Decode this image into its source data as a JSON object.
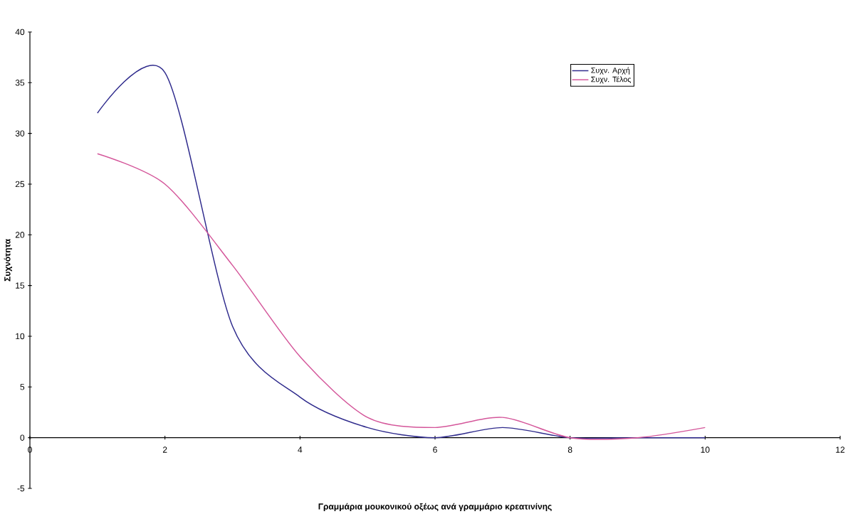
{
  "chart_data": {
    "type": "line",
    "xlabel": "Γραμμάρια μουκονικού οξέως ανά γραμμάριο κρεατινίνης",
    "ylabel": "Συχνότητα",
    "x": [
      1,
      2,
      3,
      4,
      5,
      6,
      7,
      8,
      9,
      10
    ],
    "series": [
      {
        "name": "Συχν. Αρχή",
        "color": "#2e2a8c",
        "values": [
          32,
          36,
          11,
          4,
          1,
          0,
          1,
          0,
          0,
          0
        ]
      },
      {
        "name": "Συχν. Τέλος",
        "color": "#d4569a",
        "values": [
          28,
          25,
          17,
          8,
          2,
          1,
          2,
          0,
          0,
          1
        ]
      }
    ],
    "xlim": [
      0,
      12
    ],
    "ylim": [
      -5,
      40
    ],
    "xticks": [
      0,
      2,
      4,
      6,
      8,
      10,
      12
    ],
    "yticks": [
      -5,
      0,
      5,
      10,
      15,
      20,
      25,
      30,
      35,
      40
    ],
    "grid": false,
    "legend": "top right",
    "marker": "none",
    "line_style": "solid"
  }
}
